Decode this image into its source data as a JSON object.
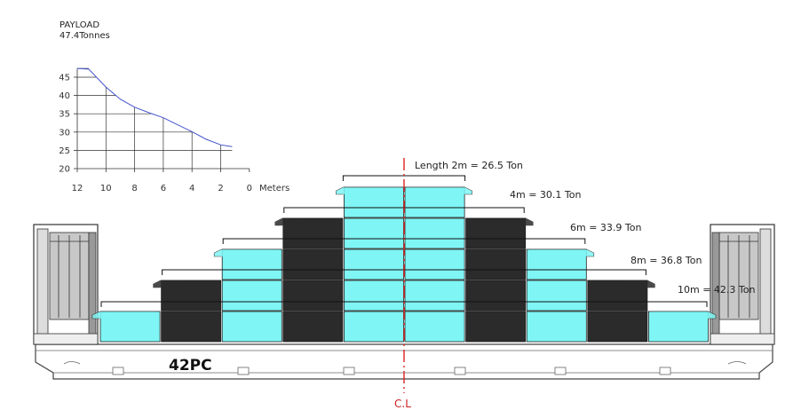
{
  "chart_data": {
    "type": "line",
    "title": "PAYLOAD",
    "subtitle": "47.4Tonnes",
    "xlabel": "Meters",
    "ylabel": "",
    "x_ticks": [
      12,
      10,
      8,
      6,
      4,
      2,
      0
    ],
    "y_ticks": [
      45,
      40,
      35,
      30,
      25,
      20
    ],
    "xlim": [
      12,
      0
    ],
    "ylim": [
      20,
      47.4
    ],
    "grid": true,
    "series": [
      {
        "x": [
          12,
          11.2,
          10,
          9,
          8,
          7,
          6,
          5,
          4,
          3,
          2,
          1.2
        ],
        "y": [
          47.4,
          47.2,
          42.3,
          39.0,
          36.8,
          35.3,
          33.9,
          32.0,
          30.1,
          28.0,
          26.5,
          26.0
        ]
      }
    ]
  },
  "load_labels": [
    {
      "text": "Length 2m = 26.5 Ton",
      "length_m": 2,
      "tons": 26.5
    },
    {
      "text": "4m = 30.1 Ton",
      "length_m": 4,
      "tons": 30.1
    },
    {
      "text": "6m = 33.9 Ton",
      "length_m": 6,
      "tons": 33.9
    },
    {
      "text": "8m = 36.8 Ton",
      "length_m": 8,
      "tons": 36.8
    },
    {
      "text": "10m = 42.3 Ton",
      "length_m": 10,
      "tons": 42.3
    }
  ],
  "container_model": "42PC",
  "centerline_label": "C.L",
  "colors": {
    "cyan_block": "#7ff5f5",
    "dark_block": "#2b2b2b",
    "centerline": "#dd2222",
    "curve": "#4455cc"
  }
}
